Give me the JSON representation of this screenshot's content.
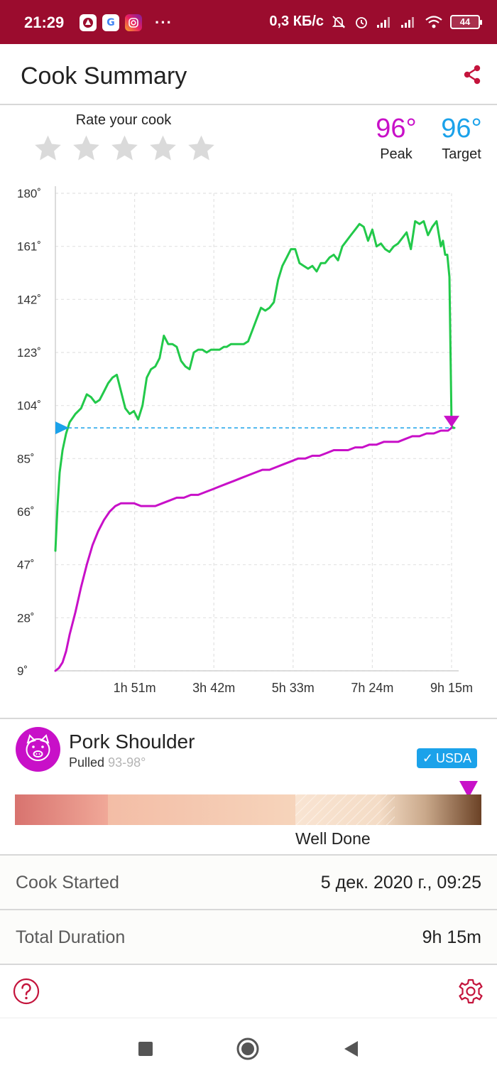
{
  "status": {
    "time": "21:29",
    "network_speed": "0,3 КБ/с",
    "battery": "44",
    "dots": "···",
    "app_icons": [
      "tennis-app-icon",
      "google-icon",
      "instagram-icon"
    ]
  },
  "header": {
    "title": "Cook Summary",
    "share_icon": "share-icon"
  },
  "rating": {
    "label": "Rate your cook",
    "stars": 5,
    "value": 0
  },
  "temps": {
    "peak_value": "96°",
    "peak_label": "Peak",
    "target_value": "96°",
    "target_label": "Target"
  },
  "colors": {
    "brand": "#9b0c2e",
    "peak": "#c810c8",
    "target": "#1ba2ea",
    "ambient_line": "#22c94a",
    "internal_line": "#c810c8"
  },
  "chart_data": {
    "type": "line",
    "y_ticks": [
      "180˚",
      "161˚",
      "142˚",
      "123˚",
      "104˚",
      "85˚",
      "66˚",
      "47˚",
      "28˚",
      "9˚"
    ],
    "y_tick_values": [
      180,
      161,
      142,
      123,
      104,
      85,
      66,
      47,
      28,
      9
    ],
    "x_ticks": [
      "1h 51m",
      "3h 42m",
      "5h 33m",
      "7h 24m",
      "9h 15m"
    ],
    "x_tick_values": [
      111,
      222,
      333,
      444,
      555
    ],
    "ylim": [
      9,
      180
    ],
    "xlim_minutes": [
      0,
      555
    ],
    "target": 96,
    "grid": true,
    "series": [
      {
        "color": "#22c94a",
        "x": [
          0,
          3,
          6,
          10,
          15,
          20,
          28,
          36,
          44,
          50,
          56,
          62,
          68,
          74,
          80,
          86,
          92,
          98,
          104,
          110,
          116,
          122,
          128,
          134,
          140,
          146,
          152,
          158,
          164,
          170,
          176,
          182,
          188,
          194,
          200,
          206,
          212,
          218,
          224,
          230,
          236,
          240,
          246,
          252,
          258,
          264,
          270,
          276,
          282,
          288,
          294,
          300,
          306,
          312,
          318,
          324,
          330,
          336,
          342,
          348,
          354,
          360,
          366,
          372,
          378,
          384,
          390,
          396,
          402,
          408,
          414,
          420,
          426,
          432,
          438,
          444,
          450,
          456,
          462,
          468,
          474,
          480,
          486,
          492,
          498,
          504,
          510,
          516,
          522,
          528,
          534,
          540,
          543,
          546,
          549,
          552,
          555,
          557,
          559
        ],
        "y": [
          52,
          68,
          80,
          88,
          94,
          98,
          101,
          103,
          108,
          107,
          105,
          106,
          109,
          112,
          114,
          115,
          109,
          103,
          101,
          102,
          99,
          104,
          114,
          117,
          118,
          121,
          129,
          126,
          126,
          125,
          120,
          118,
          117,
          123,
          124,
          124,
          123,
          124,
          124,
          124,
          125,
          125,
          126,
          126,
          126,
          126,
          127,
          131,
          135,
          139,
          138,
          139,
          141,
          149,
          154,
          157,
          160,
          160,
          155,
          154,
          153,
          154,
          152,
          155,
          155,
          157,
          158,
          156,
          161,
          163,
          165,
          167,
          169,
          168,
          163,
          167,
          161,
          162,
          160,
          159,
          161,
          162,
          164,
          166,
          160,
          170,
          169,
          170,
          165,
          168,
          170,
          161,
          163,
          158,
          158,
          150,
          97,
          96,
          96
        ]
      },
      {
        "color": "#c810c8",
        "x": [
          0,
          5,
          10,
          15,
          20,
          28,
          36,
          44,
          52,
          60,
          68,
          76,
          84,
          92,
          100,
          110,
          120,
          130,
          140,
          150,
          160,
          170,
          180,
          190,
          200,
          210,
          220,
          230,
          240,
          250,
          260,
          270,
          280,
          290,
          300,
          310,
          320,
          330,
          340,
          350,
          360,
          370,
          380,
          390,
          400,
          410,
          420,
          430,
          440,
          450,
          460,
          470,
          480,
          490,
          500,
          510,
          520,
          530,
          540,
          550,
          555
        ],
        "y": [
          9,
          10,
          12,
          16,
          22,
          30,
          39,
          47,
          54,
          59,
          63,
          66,
          68,
          69,
          69,
          69,
          68,
          68,
          68,
          69,
          70,
          71,
          71,
          72,
          72,
          73,
          74,
          75,
          76,
          77,
          78,
          79,
          80,
          81,
          81,
          82,
          83,
          84,
          85,
          85,
          86,
          86,
          87,
          88,
          88,
          88,
          89,
          89,
          90,
          90,
          91,
          91,
          91,
          92,
          93,
          93,
          94,
          94,
          95,
          95,
          96
        ]
      }
    ]
  },
  "food": {
    "name": "Pork Shoulder",
    "doneness": "Pulled",
    "range": "93-98°",
    "badge": "USDA",
    "badge_check": "✓",
    "level_label": "Well Done",
    "level_fraction": 0.96
  },
  "info": {
    "cook_started_label": "Cook Started",
    "cook_started_value": "5 дек. 2020 г., 09:25",
    "total_duration_label": "Total Duration",
    "total_duration_value": "9h 15m"
  }
}
